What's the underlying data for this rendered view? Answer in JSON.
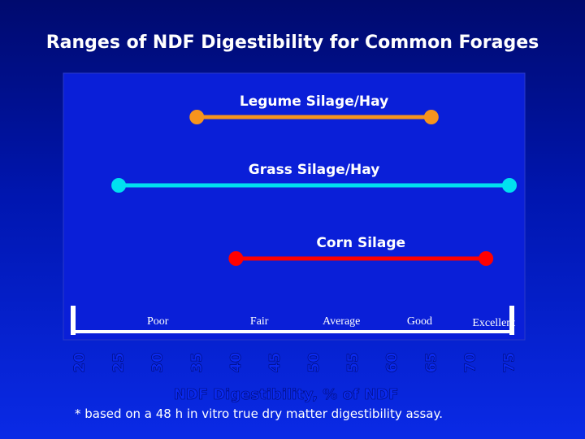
{
  "chart_data": {
    "type": "range",
    "title": "Ranges of NDF Digestibility for Common Forages",
    "xlabel": "NDF Digestibility, % of NDF",
    "xlim": [
      20,
      75
    ],
    "ticks": [
      20,
      25,
      30,
      35,
      40,
      45,
      50,
      55,
      60,
      65,
      70,
      75
    ],
    "series": [
      {
        "name": "Legume Silage/Hay",
        "min": 35,
        "max": 65,
        "color": "#f7941d"
      },
      {
        "name": "Grass Silage/Hay",
        "min": 25,
        "max": 75,
        "color": "#00e0f0"
      },
      {
        "name": "Corn Silage",
        "min": 40,
        "max": 72,
        "color": "#ff0000"
      }
    ],
    "quality_labels": [
      {
        "label": "Poor",
        "at": 30
      },
      {
        "label": "Fair",
        "at": 43
      },
      {
        "label": "Average",
        "at": 53.5
      },
      {
        "label": "Good",
        "at": 63.5
      },
      {
        "label": "Excellent",
        "at": 73
      }
    ],
    "footnote": "* based on a 48 h in vitro true dry matter digestibility assay."
  }
}
